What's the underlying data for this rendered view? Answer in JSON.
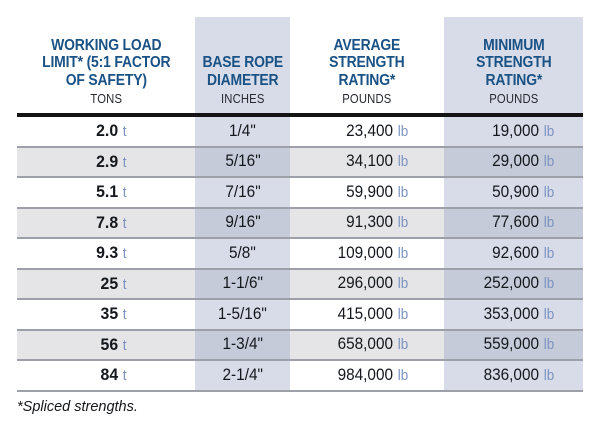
{
  "colors": {
    "header_blue": "#1a5285",
    "unit_suffix_blue": "#7b92c1",
    "column_shade": "#d8dce9",
    "column_shade_dark": "#c6cbd9",
    "row_alt": "#e5e5e7"
  },
  "header": {
    "columns": [
      {
        "title": "WORKING LOAD\nLIMIT* (5:1 FACTOR\nOF SAFETY)",
        "unit": "TONS"
      },
      {
        "title": "BASE ROPE\nDIAMETER",
        "unit": "INCHES"
      },
      {
        "title": "AVERAGE\nSTRENGTH\nRATING*",
        "unit": "POUNDS"
      },
      {
        "title": "MINIMUM\nSTRENGTH\nRATING*",
        "unit": "POUNDS"
      }
    ]
  },
  "units": {
    "tons_suffix": "t",
    "pounds_suffix": "lb"
  },
  "rows": [
    {
      "tons": "2.0",
      "diameter": "1/4\"",
      "avg_strength": "23,400",
      "min_strength": "19,000"
    },
    {
      "tons": "2.9",
      "diameter": "5/16\"",
      "avg_strength": "34,100",
      "min_strength": "29,000"
    },
    {
      "tons": "5.1",
      "diameter": "7/16\"",
      "avg_strength": "59,900",
      "min_strength": "50,900"
    },
    {
      "tons": "7.8",
      "diameter": "9/16\"",
      "avg_strength": "91,300",
      "min_strength": "77,600"
    },
    {
      "tons": "9.3",
      "diameter": "5/8\"",
      "avg_strength": "109,000",
      "min_strength": "92,600"
    },
    {
      "tons": "25",
      "diameter": "1-1/6\"",
      "avg_strength": "296,000",
      "min_strength": "252,000"
    },
    {
      "tons": "35",
      "diameter": "1-5/16\"",
      "avg_strength": "415,000",
      "min_strength": "353,000"
    },
    {
      "tons": "56",
      "diameter": "1-3/4\"",
      "avg_strength": "658,000",
      "min_strength": "559,000"
    },
    {
      "tons": "84",
      "diameter": "2-1/4\"",
      "avg_strength": "984,000",
      "min_strength": "836,000"
    }
  ],
  "footnote": "*Spliced strengths."
}
